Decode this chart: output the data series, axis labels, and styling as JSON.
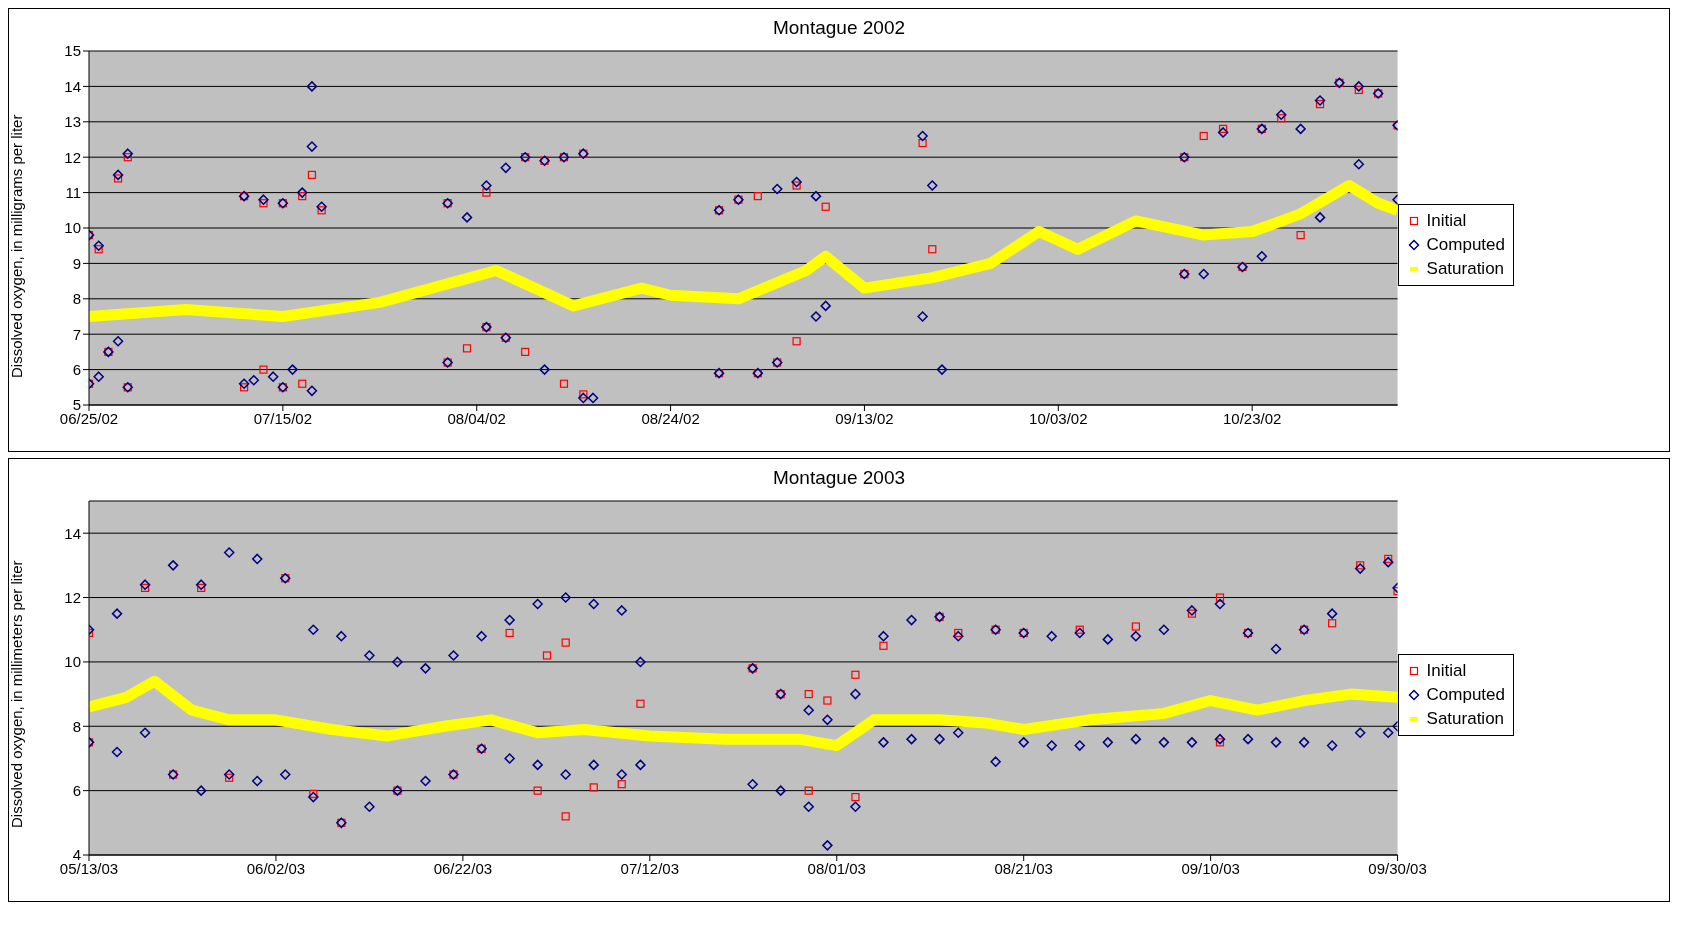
{
  "chart_data": [
    {
      "type": "scatter",
      "title": "Montague 2002",
      "ylabel": "Dissolved oxygen, in milligrams per liter",
      "xlim": [
        "2002-06-25",
        "2002-11-07"
      ],
      "xticks": [
        {
          "value": "2002-06-25",
          "label": "06/25/02"
        },
        {
          "value": "2002-07-15",
          "label": "07/15/02"
        },
        {
          "value": "2002-08-04",
          "label": "08/04/02"
        },
        {
          "value": "2002-08-24",
          "label": "08/24/02"
        },
        {
          "value": "2002-09-13",
          "label": "09/13/02"
        },
        {
          "value": "2002-10-03",
          "label": "10/03/02"
        },
        {
          "value": "2002-10-23",
          "label": "10/23/02"
        }
      ],
      "ylim": [
        5,
        15
      ],
      "yticks": [
        5,
        6,
        7,
        8,
        9,
        10,
        11,
        12,
        13,
        14,
        15
      ],
      "grid": "y",
      "legend": "right",
      "series": [
        {
          "name": "Initial",
          "marker": "square",
          "color": "#ff0000",
          "x": [
            "2002-06-25",
            "2002-06-25",
            "2002-06-26",
            "2002-06-27",
            "2002-06-28",
            "2002-06-29",
            "2002-06-29",
            "2002-07-11",
            "2002-07-11",
            "2002-07-13",
            "2002-07-13",
            "2002-07-15",
            "2002-07-15",
            "2002-07-17",
            "2002-07-17",
            "2002-07-18",
            "2002-07-19",
            "2002-08-01",
            "2002-08-01",
            "2002-08-03",
            "2002-08-05",
            "2002-08-05",
            "2002-08-07",
            "2002-08-09",
            "2002-08-09",
            "2002-08-11",
            "2002-08-13",
            "2002-08-13",
            "2002-08-15",
            "2002-08-15",
            "2002-08-29",
            "2002-08-29",
            "2002-08-31",
            "2002-09-02",
            "2002-09-02",
            "2002-09-04",
            "2002-09-06",
            "2002-09-06",
            "2002-09-09",
            "2002-09-19",
            "2002-09-20",
            "2002-10-16",
            "2002-10-16",
            "2002-10-18",
            "2002-10-20",
            "2002-10-22",
            "2002-10-24",
            "2002-10-26",
            "2002-10-28",
            "2002-10-30",
            "2002-11-01",
            "2002-11-03",
            "2002-11-05",
            "2002-11-07"
          ],
          "values": [
            9.8,
            5.6,
            9.4,
            6.5,
            11.4,
            12.0,
            5.5,
            10.9,
            5.5,
            10.7,
            6.0,
            10.7,
            5.5,
            10.9,
            5.6,
            11.5,
            10.5,
            10.7,
            6.2,
            6.6,
            11.0,
            7.2,
            6.9,
            12.0,
            6.5,
            11.9,
            12.0,
            5.6,
            12.1,
            5.3,
            10.5,
            5.9,
            10.8,
            10.9,
            5.9,
            6.2,
            11.2,
            6.8,
            10.6,
            12.4,
            9.4,
            12.0,
            8.7,
            12.6,
            12.8,
            8.9,
            12.8,
            13.1,
            9.8,
            13.5,
            14.1,
            13.9,
            13.8,
            12.9
          ]
        },
        {
          "name": "Computed",
          "marker": "diamond",
          "color": "#000080",
          "x": [
            "2002-06-25",
            "2002-06-25",
            "2002-06-26",
            "2002-06-26",
            "2002-06-27",
            "2002-06-28",
            "2002-06-28",
            "2002-06-29",
            "2002-06-29",
            "2002-07-11",
            "2002-07-11",
            "2002-07-12",
            "2002-07-13",
            "2002-07-14",
            "2002-07-15",
            "2002-07-15",
            "2002-07-16",
            "2002-07-17",
            "2002-07-18",
            "2002-07-18",
            "2002-07-18",
            "2002-07-19",
            "2002-08-01",
            "2002-08-01",
            "2002-08-03",
            "2002-08-05",
            "2002-08-05",
            "2002-08-07",
            "2002-08-07",
            "2002-08-09",
            "2002-08-11",
            "2002-08-11",
            "2002-08-13",
            "2002-08-15",
            "2002-08-15",
            "2002-08-16",
            "2002-08-29",
            "2002-08-29",
            "2002-08-31",
            "2002-09-02",
            "2002-09-04",
            "2002-09-04",
            "2002-09-06",
            "2002-09-08",
            "2002-09-08",
            "2002-09-09",
            "2002-09-19",
            "2002-09-19",
            "2002-09-20",
            "2002-09-21",
            "2002-10-16",
            "2002-10-16",
            "2002-10-18",
            "2002-10-20",
            "2002-10-22",
            "2002-10-24",
            "2002-10-24",
            "2002-10-26",
            "2002-10-28",
            "2002-10-30",
            "2002-10-30",
            "2002-11-01",
            "2002-11-03",
            "2002-11-03",
            "2002-11-05",
            "2002-11-07",
            "2002-11-07"
          ],
          "values": [
            9.8,
            5.6,
            9.5,
            5.8,
            6.5,
            11.5,
            6.8,
            12.1,
            5.5,
            10.9,
            5.6,
            5.7,
            10.8,
            5.8,
            10.7,
            5.5,
            6.0,
            11.0,
            12.3,
            14.0,
            5.4,
            10.6,
            10.7,
            6.2,
            10.3,
            11.2,
            7.2,
            11.7,
            6.9,
            12.0,
            11.9,
            6.0,
            12.0,
            12.1,
            5.2,
            5.2,
            10.5,
            5.9,
            10.8,
            5.9,
            11.1,
            6.2,
            11.3,
            10.9,
            7.5,
            7.8,
            12.6,
            7.5,
            11.2,
            6.0,
            12.0,
            8.7,
            8.7,
            12.7,
            8.9,
            12.8,
            9.2,
            13.2,
            12.8,
            13.6,
            10.3,
            14.1,
            14.0,
            11.8,
            13.8,
            12.9,
            10.8
          ]
        },
        {
          "name": "Saturation",
          "type": "line",
          "marker": "none",
          "color": "#ffff00",
          "x": [
            "2002-06-25",
            "2002-07-05",
            "2002-07-15",
            "2002-07-25",
            "2002-08-02",
            "2002-08-06",
            "2002-08-14",
            "2002-08-21",
            "2002-08-24",
            "2002-08-31",
            "2002-09-07",
            "2002-09-09",
            "2002-09-13",
            "2002-09-20",
            "2002-09-26",
            "2002-10-01",
            "2002-10-05",
            "2002-10-11",
            "2002-10-18",
            "2002-10-23",
            "2002-10-28",
            "2002-11-02",
            "2002-11-05",
            "2002-11-07"
          ],
          "values": [
            7.5,
            7.7,
            7.5,
            7.9,
            8.5,
            8.8,
            7.8,
            8.3,
            8.1,
            8.0,
            8.8,
            9.2,
            8.3,
            8.6,
            9.0,
            9.9,
            9.4,
            10.2,
            9.8,
            9.9,
            10.4,
            11.2,
            10.7,
            10.5
          ]
        }
      ]
    },
    {
      "type": "scatter",
      "title": "Montague 2003",
      "ylabel": "Dissolved oxygen, in millimeters per liter",
      "xlim": [
        "2003-05-13",
        "2003-09-30"
      ],
      "xticks": [
        {
          "value": "2003-05-13",
          "label": "05/13/03"
        },
        {
          "value": "2003-06-02",
          "label": "06/02/03"
        },
        {
          "value": "2003-06-22",
          "label": "06/22/03"
        },
        {
          "value": "2003-07-12",
          "label": "07/12/03"
        },
        {
          "value": "2003-08-01",
          "label": "08/01/03"
        },
        {
          "value": "2003-08-21",
          "label": "08/21/03"
        },
        {
          "value": "2003-09-10",
          "label": "09/10/03"
        },
        {
          "value": "2003-09-30",
          "label": "09/30/03"
        }
      ],
      "ylim": [
        4,
        15
      ],
      "yticks": [
        4,
        6,
        8,
        10,
        12,
        14
      ],
      "grid": "y",
      "legend": "right",
      "series": [
        {
          "name": "Initial",
          "marker": "square",
          "color": "#ff0000",
          "x": [
            "2003-05-13",
            "2003-05-13",
            "2003-05-19",
            "2003-05-22",
            "2003-05-25",
            "2003-05-28",
            "2003-06-03",
            "2003-06-06",
            "2003-06-09",
            "2003-06-15",
            "2003-06-21",
            "2003-06-24",
            "2003-06-27",
            "2003-06-30",
            "2003-07-01",
            "2003-07-03",
            "2003-07-03",
            "2003-07-06",
            "2003-07-09",
            "2003-07-11",
            "2003-07-23",
            "2003-07-26",
            "2003-07-29",
            "2003-07-29",
            "2003-07-31",
            "2003-08-03",
            "2003-08-03",
            "2003-08-06",
            "2003-08-12",
            "2003-08-14",
            "2003-08-18",
            "2003-08-21",
            "2003-08-27",
            "2003-09-02",
            "2003-09-08",
            "2003-09-11",
            "2003-09-11",
            "2003-09-14",
            "2003-09-20",
            "2003-09-23",
            "2003-09-26",
            "2003-09-29",
            "2003-09-30"
          ],
          "values": [
            10.9,
            7.5,
            12.3,
            6.5,
            12.3,
            6.4,
            12.6,
            5.9,
            5.0,
            6.0,
            6.5,
            7.3,
            10.9,
            6.0,
            10.2,
            5.2,
            10.6,
            6.1,
            6.2,
            8.7,
            9.8,
            9.0,
            9.0,
            6.0,
            8.8,
            9.6,
            5.8,
            10.5,
            11.4,
            10.9,
            11.0,
            10.9,
            11.0,
            11.1,
            11.5,
            12.0,
            7.5,
            10.9,
            11.0,
            11.2,
            13.0,
            13.2,
            12.2
          ]
        },
        {
          "name": "Computed",
          "marker": "diamond",
          "color": "#000080",
          "x": [
            "2003-05-13",
            "2003-05-13",
            "2003-05-16",
            "2003-05-16",
            "2003-05-19",
            "2003-05-19",
            "2003-05-22",
            "2003-05-22",
            "2003-05-25",
            "2003-05-25",
            "2003-05-28",
            "2003-05-28",
            "2003-05-31",
            "2003-05-31",
            "2003-06-03",
            "2003-06-03",
            "2003-06-06",
            "2003-06-06",
            "2003-06-09",
            "2003-06-09",
            "2003-06-12",
            "2003-06-12",
            "2003-06-15",
            "2003-06-15",
            "2003-06-18",
            "2003-06-18",
            "2003-06-21",
            "2003-06-21",
            "2003-06-24",
            "2003-06-24",
            "2003-06-27",
            "2003-06-27",
            "2003-06-30",
            "2003-06-30",
            "2003-07-03",
            "2003-07-03",
            "2003-07-06",
            "2003-07-06",
            "2003-07-09",
            "2003-07-09",
            "2003-07-11",
            "2003-07-11",
            "2003-07-23",
            "2003-07-23",
            "2003-07-26",
            "2003-07-26",
            "2003-07-29",
            "2003-07-29",
            "2003-07-31",
            "2003-07-31",
            "2003-08-03",
            "2003-08-03",
            "2003-08-06",
            "2003-08-06",
            "2003-08-09",
            "2003-08-09",
            "2003-08-12",
            "2003-08-12",
            "2003-08-14",
            "2003-08-14",
            "2003-08-18",
            "2003-08-18",
            "2003-08-21",
            "2003-08-21",
            "2003-08-24",
            "2003-08-24",
            "2003-08-27",
            "2003-08-27",
            "2003-08-30",
            "2003-08-30",
            "2003-09-02",
            "2003-09-02",
            "2003-09-05",
            "2003-09-05",
            "2003-09-08",
            "2003-09-08",
            "2003-09-11",
            "2003-09-11",
            "2003-09-14",
            "2003-09-14",
            "2003-09-17",
            "2003-09-17",
            "2003-09-20",
            "2003-09-20",
            "2003-09-23",
            "2003-09-23",
            "2003-09-26",
            "2003-09-26",
            "2003-09-29",
            "2003-09-29",
            "2003-09-30",
            "2003-09-30"
          ],
          "values": [
            11.0,
            7.5,
            11.5,
            7.2,
            12.4,
            7.8,
            13.0,
            6.5,
            12.4,
            6.0,
            13.4,
            6.5,
            13.2,
            6.3,
            12.6,
            6.5,
            11.0,
            5.8,
            10.8,
            5.0,
            10.2,
            5.5,
            10.0,
            6.0,
            9.8,
            6.3,
            10.2,
            6.5,
            10.8,
            7.3,
            11.3,
            7.0,
            11.8,
            6.8,
            12.0,
            6.5,
            11.8,
            6.8,
            11.6,
            6.5,
            10.0,
            6.8,
            9.8,
            6.2,
            9.0,
            6.0,
            8.5,
            5.5,
            8.2,
            4.3,
            9.0,
            5.5,
            10.8,
            7.5,
            11.3,
            7.6,
            11.4,
            7.6,
            10.8,
            7.8,
            11.0,
            6.9,
            10.9,
            7.5,
            10.8,
            7.4,
            10.9,
            7.4,
            10.7,
            7.5,
            10.8,
            7.6,
            11.0,
            7.5,
            11.6,
            7.5,
            11.8,
            7.6,
            10.9,
            7.6,
            10.4,
            7.5,
            11.0,
            7.5,
            11.5,
            7.4,
            12.9,
            7.8,
            13.1,
            7.8,
            12.3,
            8.0
          ]
        },
        {
          "name": "Saturation",
          "type": "line",
          "marker": "none",
          "color": "#ffff00",
          "x": [
            "2003-05-13",
            "2003-05-17",
            "2003-05-20",
            "2003-05-24",
            "2003-05-28",
            "2003-06-02",
            "2003-06-08",
            "2003-06-14",
            "2003-06-20",
            "2003-06-25",
            "2003-06-30",
            "2003-07-05",
            "2003-07-12",
            "2003-07-20",
            "2003-07-28",
            "2003-08-01",
            "2003-08-05",
            "2003-08-12",
            "2003-08-17",
            "2003-08-21",
            "2003-08-28",
            "2003-09-05",
            "2003-09-10",
            "2003-09-15",
            "2003-09-20",
            "2003-09-25",
            "2003-09-30"
          ],
          "values": [
            8.6,
            8.9,
            9.4,
            8.5,
            8.2,
            8.2,
            7.9,
            7.7,
            8.0,
            8.2,
            7.8,
            7.9,
            7.7,
            7.6,
            7.6,
            7.4,
            8.2,
            8.2,
            8.1,
            7.9,
            8.2,
            8.4,
            8.8,
            8.5,
            8.8,
            9.0,
            8.9
          ]
        }
      ]
    }
  ]
}
